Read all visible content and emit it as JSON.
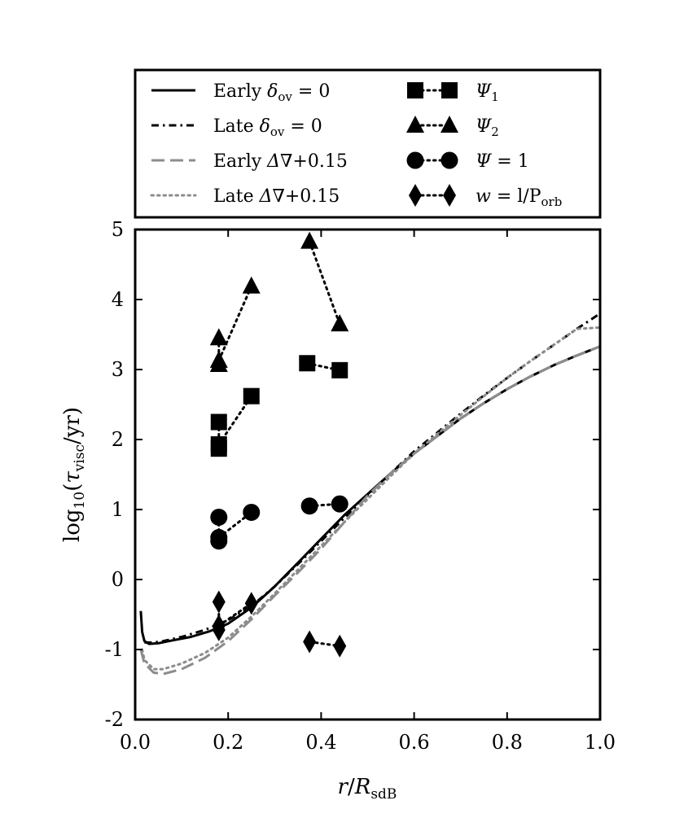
{
  "chart_data": {
    "type": "line",
    "title": "",
    "xlabel": {
      "var": "r",
      "sep": "/",
      "main": "R",
      "sub": "sdB"
    },
    "ylabel": {
      "pre": "log",
      "pre_sub": "10",
      "open": "(",
      "var": "τ",
      "var_sub": "visc",
      "rest": "/yr)"
    },
    "xlim": [
      0.0,
      1.0
    ],
    "ylim": [
      -2,
      5
    ],
    "x_ticks": [
      0.0,
      0.2,
      0.4,
      0.6,
      0.8,
      1.0
    ],
    "x_tick_labels": [
      "0.0",
      "0.2",
      "0.4",
      "0.6",
      "0.8",
      "1.0"
    ],
    "y_ticks": [
      -2,
      -1,
      0,
      1,
      2,
      3,
      4,
      5
    ],
    "y_tick_labels": [
      "-2",
      "-1",
      "0",
      "1",
      "2",
      "3",
      "4",
      "5"
    ],
    "legend_position": "above plot",
    "legend": [
      {
        "key": "early_ov0",
        "style": "solid-black",
        "label": {
          "pre": "Early ",
          "sym": "δ",
          "sub": "ov",
          "post": " = 0"
        }
      },
      {
        "key": "late_ov0",
        "style": "dashdot-black",
        "label": {
          "pre": "Late ",
          "sym": "δ",
          "sub": "ov",
          "post": " = 0"
        }
      },
      {
        "key": "early_dnabla",
        "style": "dashed-gray",
        "label": {
          "pre": "Early ",
          "sym": "Δ∇",
          "sub": "",
          "post": "+0.15"
        }
      },
      {
        "key": "late_dnabla",
        "style": "dotted-gray",
        "label": {
          "pre": "Late ",
          "sym": "Δ∇",
          "sub": "",
          "post": "+0.15"
        }
      },
      {
        "key": "psi1",
        "style": "square",
        "label": {
          "pre": "",
          "sym": "Ψ",
          "sub": "1",
          "post": ""
        }
      },
      {
        "key": "psi2",
        "style": "triangle",
        "label": {
          "pre": "",
          "sym": "Ψ",
          "sub": "2",
          "post": ""
        }
      },
      {
        "key": "psi_eq1",
        "style": "circle",
        "label": {
          "pre": "",
          "sym": "Ψ",
          "sub": "",
          "post": " = 1"
        }
      },
      {
        "key": "w",
        "style": "diamond",
        "label": {
          "pre": "",
          "sym": "w",
          "sub": "",
          "post": " = l/P",
          "post_sub": "orb"
        }
      }
    ],
    "lines": [
      {
        "name": "Early δov = 0",
        "style": "solid-black",
        "x": [
          0.012,
          0.015,
          0.02,
          0.03,
          0.05,
          0.08,
          0.12,
          0.16,
          0.2,
          0.25,
          0.3,
          0.35,
          0.4,
          0.45,
          0.5,
          0.55,
          0.6,
          0.65,
          0.7,
          0.75,
          0.8,
          0.85,
          0.9,
          0.95,
          1.0
        ],
        "y": [
          -0.45,
          -0.75,
          -0.88,
          -0.92,
          -0.91,
          -0.87,
          -0.82,
          -0.74,
          -0.63,
          -0.4,
          -0.1,
          0.24,
          0.58,
          0.92,
          1.22,
          1.52,
          1.8,
          2.05,
          2.3,
          2.52,
          2.72,
          2.9,
          3.06,
          3.2,
          3.33
        ]
      },
      {
        "name": "Late δov = 0",
        "style": "dashdot-black",
        "x": [
          0.02,
          0.04,
          0.06,
          0.1,
          0.15,
          0.2,
          0.25,
          0.3,
          0.35,
          0.4,
          0.45,
          0.5,
          0.55,
          0.6,
          0.65,
          0.7,
          0.75,
          0.8,
          0.85,
          0.9,
          0.95,
          1.0
        ],
        "y": [
          -0.9,
          -0.9,
          -0.88,
          -0.82,
          -0.72,
          -0.58,
          -0.38,
          -0.1,
          0.22,
          0.55,
          0.88,
          1.2,
          1.52,
          1.83,
          2.1,
          2.37,
          2.63,
          2.88,
          3.12,
          3.35,
          3.58,
          3.8
        ]
      },
      {
        "name": "Early Δ∇+0.15",
        "style": "dashed-gray",
        "x": [
          0.012,
          0.02,
          0.04,
          0.06,
          0.1,
          0.15,
          0.2,
          0.25,
          0.3,
          0.35,
          0.4,
          0.45,
          0.5,
          0.55,
          0.6,
          0.65,
          0.7,
          0.75,
          0.8,
          0.85,
          0.9,
          0.95,
          1.0
        ],
        "y": [
          -1.0,
          -1.2,
          -1.33,
          -1.35,
          -1.28,
          -1.12,
          -0.88,
          -0.57,
          -0.23,
          0.1,
          0.44,
          0.82,
          1.2,
          1.52,
          1.8,
          2.05,
          2.3,
          2.52,
          2.72,
          2.9,
          3.06,
          3.2,
          3.33
        ]
      },
      {
        "name": "Late Δ∇+0.15",
        "style": "dotted-gray",
        "x": [
          0.015,
          0.02,
          0.04,
          0.06,
          0.1,
          0.15,
          0.2,
          0.25,
          0.3,
          0.35,
          0.4,
          0.45,
          0.5,
          0.55,
          0.6,
          0.65,
          0.7,
          0.75,
          0.8,
          0.85,
          0.9,
          0.95,
          1.0
        ],
        "y": [
          -1.0,
          -1.15,
          -1.28,
          -1.28,
          -1.2,
          -1.05,
          -0.83,
          -0.53,
          -0.2,
          0.14,
          0.48,
          0.82,
          1.15,
          1.48,
          1.8,
          2.08,
          2.35,
          2.62,
          2.88,
          3.12,
          3.35,
          3.58,
          3.6
        ]
      }
    ],
    "marker_series": [
      {
        "name": "Ψ1",
        "marker": "square",
        "groups": [
          {
            "x": [
              0.18,
              0.18
            ],
            "y": [
              2.25,
              1.87
            ]
          },
          {
            "x": [
              0.18,
              0.25
            ],
            "y": [
              1.93,
              2.62
            ]
          },
          {
            "x": [
              0.37,
              0.44
            ],
            "y": [
              3.09,
              2.99
            ]
          }
        ]
      },
      {
        "name": "Ψ2",
        "marker": "triangle",
        "groups": [
          {
            "x": [
              0.18,
              0.18
            ],
            "y": [
              3.45,
              3.07
            ]
          },
          {
            "x": [
              0.18,
              0.25
            ],
            "y": [
              3.13,
              4.19
            ]
          },
          {
            "x": [
              0.375,
              0.44
            ],
            "y": [
              4.83,
              3.65
            ]
          }
        ]
      },
      {
        "name": "Ψ = 1",
        "marker": "circle",
        "groups": [
          {
            "x": [
              0.18,
              0.18
            ],
            "y": [
              0.89,
              0.55
            ]
          },
          {
            "x": [
              0.18,
              0.25
            ],
            "y": [
              0.6,
              0.96
            ]
          },
          {
            "x": [
              0.375,
              0.44
            ],
            "y": [
              1.05,
              1.08
            ]
          }
        ]
      },
      {
        "name": "w = l/Porb",
        "marker": "diamond",
        "groups": [
          {
            "x": [
              0.18,
              0.18
            ],
            "y": [
              -0.32,
              -0.72
            ]
          },
          {
            "x": [
              0.18,
              0.25
            ],
            "y": [
              -0.66,
              -0.34
            ]
          },
          {
            "x": [
              0.375,
              0.44
            ],
            "y": [
              -0.89,
              -0.95
            ]
          }
        ]
      }
    ]
  }
}
